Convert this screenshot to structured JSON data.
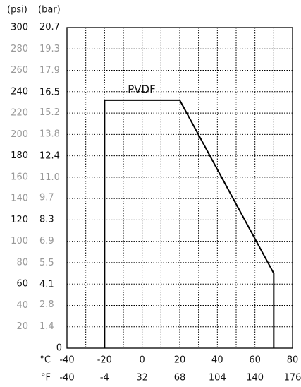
{
  "chart_data": {
    "type": "line",
    "y_label": "(psi)",
    "y2_label": "(bar)",
    "x_label": "°C",
    "x2_label": "°F",
    "annotation": "PVDF",
    "x": [
      -20,
      -20,
      20,
      70,
      70
    ],
    "series": [
      {
        "name": "PVDF",
        "color": "#000000",
        "values": [
          0,
          232,
          232,
          70,
          0
        ]
      }
    ],
    "xlim": [
      -40,
      80
    ],
    "xticks": [
      -40,
      -20,
      0,
      20,
      40,
      60,
      80
    ],
    "x2lim": [
      -40,
      176
    ],
    "x2ticks": [
      -40,
      -4,
      32,
      68,
      104,
      140,
      176
    ],
    "ylim": [
      0,
      300
    ],
    "yticks": [
      20,
      40,
      60,
      80,
      100,
      120,
      140,
      160,
      180,
      200,
      220,
      240,
      260,
      280,
      300
    ],
    "y2lim": [
      0,
      20.68
    ],
    "y2ticks": [
      0,
      1.4,
      2.8,
      4.1,
      5.5,
      6.9,
      8.3,
      9.7,
      {
        "value": 11,
        "label": "11.0"
      },
      12.4,
      13.8,
      15.2,
      16.5,
      17.9,
      19.3,
      20.7
    ],
    "grid": true
  }
}
